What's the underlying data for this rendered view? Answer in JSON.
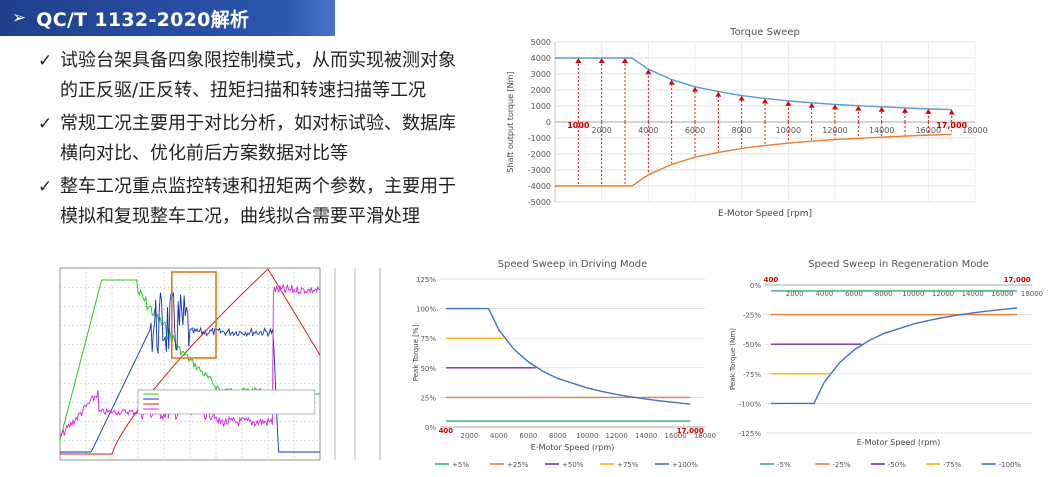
{
  "header": {
    "arrow": "➢",
    "title": "QC/T 1132-2020解析"
  },
  "bullets": [
    {
      "mark": "✓",
      "lines": [
        "试验台架具备四象限控制模式，从而实现被测对象",
        "的正反驱/正反转、扭矩扫描和转速扫描等工况"
      ]
    },
    {
      "mark": "✓",
      "lines": [
        "常规工况主要用于对比分析，如对标试验、数据库",
        "横向对比、优化前后方案数据对比等"
      ]
    },
    {
      "mark": "✓",
      "lines": [
        "整车工况重点监控转速和扭矩两个参数，主要用于",
        "模拟和复现整车工况，曲线拟合需要平滑处理"
      ]
    }
  ],
  "chart_data": [
    {
      "id": "torque-sweep",
      "type": "line",
      "title": "Torque Sweep",
      "xlabel": "E-Motor Speed [rpm]",
      "ylabel": "Shaft output torque [Nm]",
      "xlim": [
        0,
        18000
      ],
      "ylim": [
        -5000,
        5000
      ],
      "xticks": [
        2000,
        4000,
        6000,
        8000,
        10000,
        12000,
        14000,
        16000,
        18000
      ],
      "yticks": [
        -5000,
        -4000,
        -3000,
        -2000,
        -1000,
        0,
        1000,
        2000,
        3000,
        4000,
        5000
      ],
      "grid": true,
      "annotations": [
        {
          "text": "1000",
          "x": 1000,
          "y": 0,
          "color": "#d40000"
        },
        {
          "text": "17,000",
          "x": 17000,
          "y": 0,
          "color": "#d40000"
        }
      ],
      "series": [
        {
          "color": "#5b9bd5",
          "x": [
            0,
            3300,
            4000,
            5000,
            6000,
            7000,
            8000,
            9000,
            10000,
            11000,
            12000,
            13000,
            14000,
            15000,
            16000,
            17000
          ],
          "y": [
            4000,
            4000,
            3300,
            2650,
            2200,
            1900,
            1650,
            1470,
            1320,
            1200,
            1100,
            1020,
            950,
            880,
            820,
            780
          ]
        },
        {
          "color": "#ed7d31",
          "x": [
            0,
            3300,
            4000,
            5000,
            6000,
            7000,
            8000,
            9000,
            10000,
            11000,
            12000,
            13000,
            14000,
            15000,
            16000,
            17000
          ],
          "y": [
            -4000,
            -4000,
            -3300,
            -2650,
            -2200,
            -1900,
            -1650,
            -1470,
            -1320,
            -1200,
            -1100,
            -1020,
            -950,
            -880,
            -820,
            -780
          ]
        }
      ],
      "markers": {
        "color": "#e00000",
        "x": [
          1000,
          2000,
          3000,
          4000,
          5000,
          6000,
          7000,
          8000,
          9000,
          10000,
          11000,
          12000,
          13000,
          14000,
          15000,
          16000,
          17000
        ],
        "y": [
          4000,
          4000,
          4000,
          3300,
          2650,
          2200,
          1900,
          1650,
          1470,
          1320,
          1200,
          1100,
          1020,
          950,
          880,
          820,
          780
        ]
      }
    },
    {
      "id": "driving",
      "type": "line",
      "title": "Speed Sweep in Driving Mode",
      "xlabel": "E-Motor Speed (rpm)",
      "ylabel": "Peak Torque [%]",
      "xlim": [
        0,
        18000
      ],
      "ylim": [
        0,
        125
      ],
      "xticks": [
        2000,
        4000,
        6000,
        8000,
        10000,
        12000,
        14000,
        16000,
        18000
      ],
      "yticks": [
        0,
        25,
        50,
        75,
        100,
        125
      ],
      "ytick_labels": [
        "0%",
        "25%",
        "50%",
        "75%",
        "100%",
        "125%"
      ],
      "annotations": [
        {
          "text": "400",
          "x": 400,
          "y": 0,
          "color": "#d40000"
        },
        {
          "text": "17,000",
          "x": 17000,
          "y": 0,
          "color": "#d40000"
        }
      ],
      "series": [
        {
          "name": "+5%",
          "color": "#2fb36b",
          "x": [
            400,
            17000
          ],
          "y": [
            5,
            5
          ]
        },
        {
          "name": "+25%",
          "color": "#ed7d31",
          "x": [
            400,
            17000
          ],
          "y": [
            25,
            25
          ]
        },
        {
          "name": "+50%",
          "color": "#7030a0",
          "x": [
            400,
            6500
          ],
          "y": [
            50,
            50
          ]
        },
        {
          "name": "+75%",
          "color": "#f0b400",
          "x": [
            400,
            4300
          ],
          "y": [
            75,
            75
          ]
        },
        {
          "name": "+100%",
          "color": "#4472c4",
          "x": [
            400,
            3300,
            4000,
            5000,
            6000,
            7000,
            8000,
            9000,
            10000,
            11000,
            12000,
            13000,
            14000,
            15000,
            16000,
            17000
          ],
          "y": [
            100,
            100,
            82,
            66,
            55,
            47,
            41,
            37,
            33,
            30,
            27.5,
            25.4,
            23.6,
            22,
            20.6,
            19.4
          ]
        }
      ]
    },
    {
      "id": "regen",
      "type": "line",
      "title": "Speed Sweep in Regeneration Mode",
      "xlabel": "E-Motor Speed (rpm)",
      "ylabel": "Peak Torque (Nm)",
      "xlim": [
        0,
        18000
      ],
      "ylim": [
        -125,
        0
      ],
      "xticks": [
        2000,
        4000,
        6000,
        8000,
        10000,
        12000,
        14000,
        16000,
        18000
      ],
      "yticks": [
        -125,
        -100,
        -75,
        -50,
        -25,
        0
      ],
      "ytick_labels": [
        "-125%",
        "-100%",
        "-75%",
        "-50%",
        "-25%",
        "0%"
      ],
      "annotations": [
        {
          "text": "400",
          "x": 400,
          "y": 0,
          "color": "#d40000"
        },
        {
          "text": "17,000",
          "x": 17000,
          "y": 0,
          "color": "#d40000"
        }
      ],
      "series": [
        {
          "name": "-5%",
          "color": "#2fb36b",
          "x": [
            400,
            17000
          ],
          "y": [
            -5,
            -5
          ]
        },
        {
          "name": "-25%",
          "color": "#ed7d31",
          "x": [
            400,
            17000
          ],
          "y": [
            -25,
            -25
          ]
        },
        {
          "name": "-50%",
          "color": "#7030a0",
          "x": [
            400,
            6500
          ],
          "y": [
            -50,
            -50
          ]
        },
        {
          "name": "-75%",
          "color": "#f0b400",
          "x": [
            400,
            4300
          ],
          "y": [
            -75,
            -75
          ]
        },
        {
          "name": "-100%",
          "color": "#4472c4",
          "x": [
            400,
            3300,
            4000,
            5000,
            6000,
            7000,
            8000,
            9000,
            10000,
            11000,
            12000,
            13000,
            14000,
            15000,
            16000,
            17000
          ],
          "y": [
            -100,
            -100,
            -82,
            -66,
            -55,
            -47,
            -41,
            -37,
            -33,
            -30,
            -27.5,
            -25.4,
            -23.6,
            -22,
            -20.6,
            -19.4
          ]
        }
      ]
    }
  ],
  "scope_plot": {
    "colors": {
      "background": "#ffffff",
      "grid": "#b8b8b8",
      "highlight": "#e07820"
    },
    "traces": [
      {
        "color": "#22cc22",
        "shape": "torque-step-decay"
      },
      {
        "color": "#1030c0",
        "shape": "speed-ramp"
      },
      {
        "color": "#d02020",
        "shape": "speed-rise-fall"
      },
      {
        "color": "#e020e0",
        "shape": "noisy-low-high"
      }
    ]
  }
}
